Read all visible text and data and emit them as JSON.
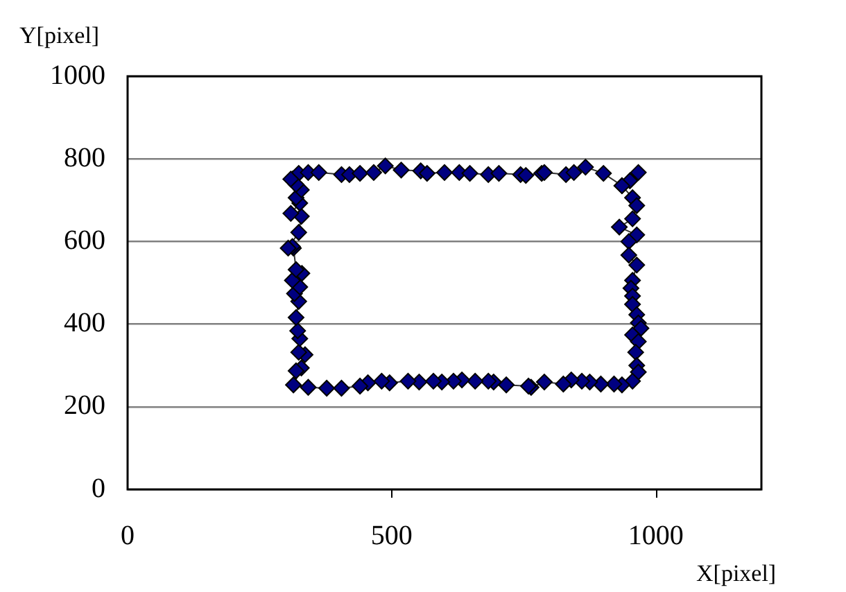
{
  "chart_data": {
    "type": "line",
    "xlabel": "X[pixel]",
    "ylabel": "Y[pixel]",
    "xlim": [
      0,
      1200
    ],
    "xticks": [
      0,
      500,
      1000
    ],
    "ylim": [
      0,
      1000
    ],
    "yticks": [
      0,
      200,
      400,
      600,
      800,
      1000
    ],
    "grid": "y",
    "marker": "diamond",
    "legend": false,
    "series": [
      {
        "color": "#000080",
        "x": [
          312,
          324,
          342,
          362,
          405,
          420,
          440,
          466,
          488,
          518,
          555,
          567,
          600,
          628,
          648,
          683,
          703,
          744,
          754,
          784,
          789,
          830,
          845,
          867,
          901,
          936,
          951,
          967,
          936,
          956,
          964,
          956,
          931,
          964,
          949,
          949,
          964,
          956,
          953,
          956,
          956,
          964,
          967,
          972,
          956,
          967,
          962,
          964,
          967,
          956,
          936,
          921,
          896,
          875,
          860,
          840,
          825,
          789,
          764,
          759,
          717,
          693,
          683,
          658,
          633,
          617,
          595,
          579,
          552,
          531,
          496,
          481,
          455,
          440,
          405,
          377,
          342,
          314,
          329,
          319,
          336,
          324,
          326,
          322,
          319,
          324,
          316,
          326,
          312,
          330,
          319,
          314,
          312,
          304,
          324,
          329,
          309,
          326,
          319,
          329,
          319,
          309
        ],
        "values": [
          751,
          765,
          767,
          767,
          762,
          762,
          765,
          767,
          783,
          773,
          771,
          765,
          767,
          767,
          765,
          762,
          765,
          762,
          760,
          765,
          767,
          762,
          767,
          780,
          765,
          735,
          747,
          767,
          735,
          706,
          687,
          655,
          635,
          616,
          600,
          567,
          543,
          506,
          487,
          468,
          448,
          423,
          403,
          390,
          374,
          358,
          332,
          300,
          284,
          262,
          253,
          255,
          255,
          260,
          262,
          265,
          255,
          260,
          247,
          250,
          253,
          260,
          262,
          262,
          265,
          262,
          260,
          262,
          260,
          262,
          258,
          262,
          258,
          250,
          245,
          245,
          247,
          253,
          294,
          287,
          326,
          332,
          365,
          384,
          416,
          455,
          474,
          490,
          506,
          523,
          532,
          584,
          588,
          584,
          622,
          661,
          668,
          693,
          706,
          725,
          738,
          751
        ]
      }
    ]
  }
}
